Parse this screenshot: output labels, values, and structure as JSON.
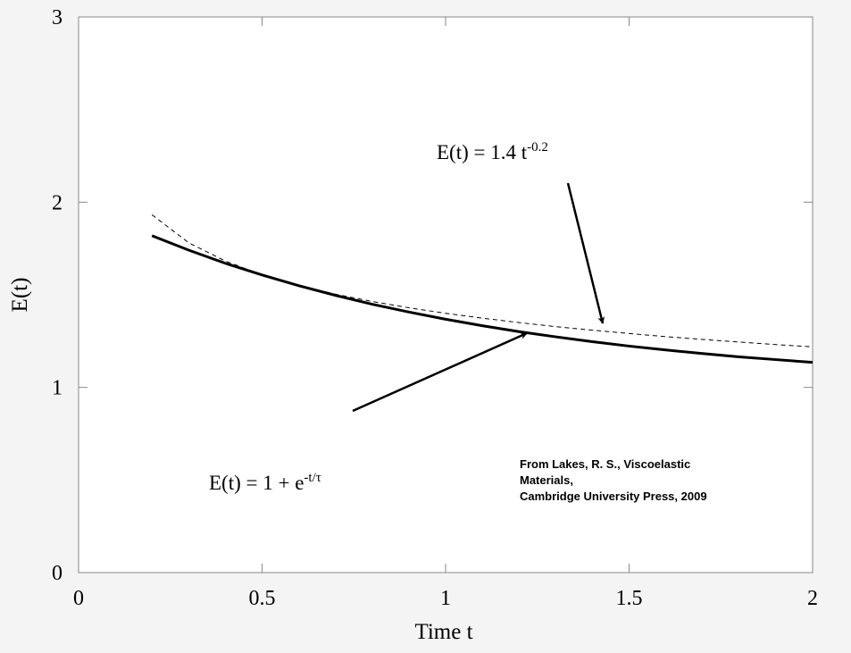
{
  "chart_data": {
    "type": "line",
    "xlabel": "Time t",
    "ylabel": "E(t)",
    "x": [
      0.2,
      0.3,
      0.4,
      0.5,
      0.6,
      0.7,
      0.8,
      0.9,
      1.0,
      1.1,
      1.2,
      1.3,
      1.4,
      1.5,
      1.6,
      1.7,
      1.8,
      1.9,
      2.0
    ],
    "series": [
      {
        "color": "#000000",
        "line_style": "solid",
        "line_width": 3,
        "values": [
          1.819,
          1.741,
          1.67,
          1.607,
          1.549,
          1.497,
          1.449,
          1.407,
          1.368,
          1.333,
          1.301,
          1.273,
          1.247,
          1.223,
          1.202,
          1.183,
          1.165,
          1.15,
          1.135
        ]
      },
      {
        "color": "#000000",
        "line_style": "dashed",
        "line_width": 1,
        "values": [
          1.932,
          1.781,
          1.682,
          1.608,
          1.551,
          1.503,
          1.464,
          1.43,
          1.4,
          1.374,
          1.35,
          1.328,
          1.309,
          1.291,
          1.274,
          1.259,
          1.245,
          1.231,
          1.219
        ]
      }
    ],
    "xlim": [
      0,
      2
    ],
    "ylim": [
      0,
      3
    ],
    "xticks": [
      0,
      0.5,
      1,
      1.5,
      2
    ],
    "yticks": [
      0,
      1,
      2,
      3
    ],
    "annotations": [
      {
        "text": "E(t) = 1.4 t",
        "sup": "-0.2"
      },
      {
        "text": "E(t) = 1 + e",
        "sup": "-t/τ"
      }
    ],
    "credit": [
      "From Lakes, R. S., Viscoelastic",
      "Materials,",
      "Cambridge University Press, 2009"
    ]
  }
}
